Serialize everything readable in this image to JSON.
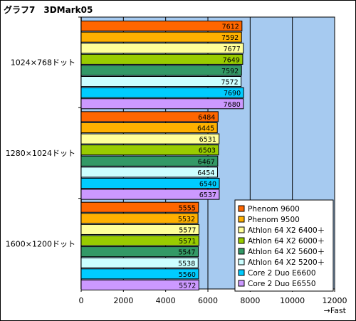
{
  "chart_data": {
    "type": "bar",
    "orientation": "horizontal",
    "title": "グラフ7　3DMark05",
    "xlabel": "→Fast",
    "ylabel": "",
    "xlim": [
      0,
      12000
    ],
    "ticks": [
      0,
      2000,
      4000,
      6000,
      8000,
      10000,
      12000
    ],
    "grid": true,
    "legend_position": "bottom-right",
    "plot_background": "#a6caf0",
    "categories": [
      "1024×768ドット",
      "1280×1024ドット",
      "1600×1200ドット"
    ],
    "series": [
      {
        "name": "Phenom 9600",
        "color": "#ff6600",
        "values": [
          7612,
          6484,
          5555
        ]
      },
      {
        "name": "Phenom 9500",
        "color": "#ffb000",
        "values": [
          7592,
          6445,
          5532
        ]
      },
      {
        "name": "Athlon 64 X2 6400＋",
        "color": "#ffff99",
        "values": [
          7677,
          6531,
          5577
        ]
      },
      {
        "name": "Athlon 64 X2 6000＋",
        "color": "#99cc00",
        "values": [
          7649,
          6503,
          5571
        ]
      },
      {
        "name": "Athlon 64 X2 5600＋",
        "color": "#339966",
        "values": [
          7592,
          6467,
          5547
        ]
      },
      {
        "name": "Athlon 64 X2 5200＋",
        "color": "#ccffff",
        "values": [
          7572,
          6454,
          5538
        ]
      },
      {
        "name": "Core 2 Duo E6600",
        "color": "#00ccff",
        "values": [
          7690,
          6540,
          5560
        ]
      },
      {
        "name": "Core 2 Duo E6550",
        "color": "#cc99ff",
        "values": [
          7680,
          6537,
          5572
        ]
      }
    ]
  }
}
